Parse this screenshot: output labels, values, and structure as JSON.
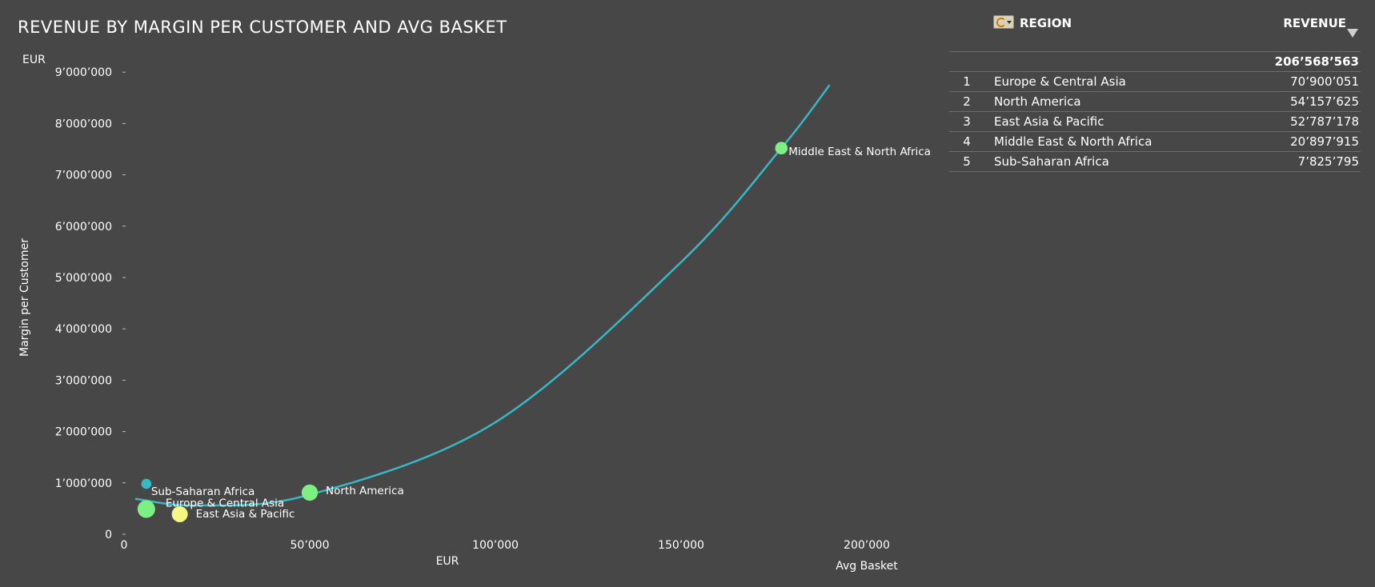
{
  "title": "REVENUE BY MARGIN PER CUSTOMER AND AVG BASKET",
  "chart_data": {
    "type": "scatter",
    "title": "REVENUE BY MARGIN PER CUSTOMER AND AVG BASKET",
    "xlabel": "Avg Basket",
    "x_unit": "EUR",
    "ylabel": "Margin per Customer",
    "y_unit": "EUR",
    "xlim": [
      0,
      215000
    ],
    "ylim": [
      0,
      9000000
    ],
    "x_ticks": [
      "0",
      "50’000",
      "100’000",
      "150’000",
      "200’000"
    ],
    "y_ticks": [
      "0",
      "1’000’000",
      "2’000’000",
      "3’000’000",
      "4’000’000",
      "5’000’000",
      "6’000’000",
      "7’000’000",
      "8’000’000",
      "9’000’000"
    ],
    "grid": false,
    "points": [
      {
        "label": "Sub-Saharan Africa",
        "x": 6000,
        "y": 980000,
        "size": 7825795,
        "color": "#37b8c6"
      },
      {
        "label": "Europe & Central Asia",
        "x": 6000,
        "y": 490000,
        "size": 70900051,
        "color": "#7cf083"
      },
      {
        "label": "East Asia & Pacific",
        "x": 15000,
        "y": 390000,
        "size": 52787178,
        "color": "#f6f682"
      },
      {
        "label": "North America",
        "x": 50000,
        "y": 810000,
        "size": 54157625,
        "color": "#7cf083"
      },
      {
        "label": "Middle East & North Africa",
        "x": 177000,
        "y": 7520000,
        "size": 20897915,
        "color": "#7cf083"
      }
    ],
    "trendline": {
      "type": "polynomial",
      "color": "#37b8c6",
      "x_range": [
        3000,
        190000
      ],
      "fit_points": [
        {
          "x": 3000,
          "y": 690000
        },
        {
          "x": 20000,
          "y": 560000
        },
        {
          "x": 50000,
          "y": 770000
        },
        {
          "x": 100000,
          "y": 2180000
        },
        {
          "x": 150000,
          "y": 5300000
        },
        {
          "x": 177000,
          "y": 7520000
        },
        {
          "x": 190000,
          "y": 8750000
        }
      ]
    }
  },
  "table": {
    "header_region": "REGION",
    "header_revenue": "REVENUE",
    "total": "206’568’563",
    "rows": [
      {
        "rank": "1",
        "region": "Europe & Central Asia",
        "revenue": "70’900’051"
      },
      {
        "rank": "2",
        "region": "North America",
        "revenue": "54’157’625"
      },
      {
        "rank": "3",
        "region": "East Asia & Pacific",
        "revenue": "52’787’178"
      },
      {
        "rank": "4",
        "region": "Middle East & North Africa",
        "revenue": "20’897’915"
      },
      {
        "rank": "5",
        "region": "Sub-Saharan Africa",
        "revenue": "7’825’795"
      }
    ]
  },
  "icons": {
    "cycle": "cycle-dimension-icon",
    "sort": "sort-descending-icon"
  }
}
